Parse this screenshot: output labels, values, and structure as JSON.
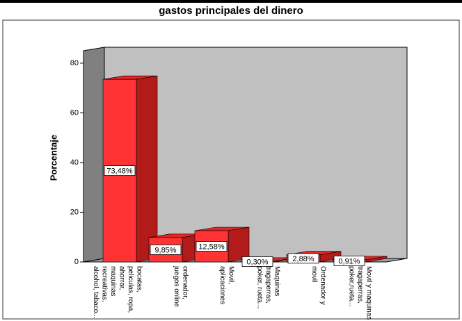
{
  "chart_data": {
    "type": "bar3d",
    "title": "gastos principales del dinero",
    "y_label": "Porcentaje",
    "categories": [
      [
        "bocatas,",
        "peliculas, ropa,",
        "ahorrar,",
        "maquinas",
        "recreativas,",
        "alcohol, tabaco..."
      ],
      [
        "ordenador,",
        "juegos online"
      ],
      [
        "Movil,",
        "aplicaciones"
      ],
      [
        "Maquinas",
        "tragaperras,",
        "poker, rueta..."
      ],
      [
        "Ordenador y",
        "movil"
      ],
      [
        "Movil y maquinas",
        "tragaperras,",
        "poker,rueta..."
      ]
    ],
    "values": [
      73.48,
      9.85,
      12.58,
      0.3,
      2.88,
      0.91
    ],
    "value_labels": [
      "73,48%",
      "9,85%",
      "12,58%",
      "0,30%",
      "2,88%",
      "0,91%"
    ],
    "color": "#ff3333",
    "ylim": [
      0,
      85
    ],
    "yticks": [
      0,
      20,
      40,
      60,
      80
    ]
  }
}
